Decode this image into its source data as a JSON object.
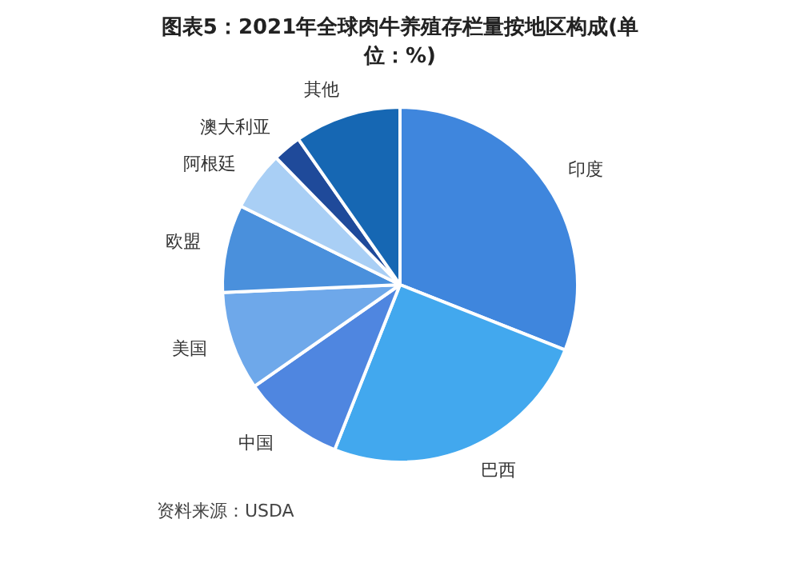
{
  "chart_data": {
    "type": "pie",
    "title": "图表5：2021年全球肉牛养殖存栏量按地区构成(单位：%)",
    "categories": [
      "印度",
      "巴西",
      "中国",
      "美国",
      "欧盟",
      "阿根廷",
      "澳大利亚",
      "其他"
    ],
    "values": [
      31,
      25,
      9.3,
      9,
      8,
      5.4,
      2.6,
      9.7
    ],
    "colors": [
      "#3f86dd",
      "#42a8ee",
      "#4f86e0",
      "#6ea8ea",
      "#4a90dc",
      "#a9cff5",
      "#1f4a9a",
      "#1667b3"
    ],
    "legend": false,
    "annotations": [
      "资料来源：USDA"
    ]
  }
}
